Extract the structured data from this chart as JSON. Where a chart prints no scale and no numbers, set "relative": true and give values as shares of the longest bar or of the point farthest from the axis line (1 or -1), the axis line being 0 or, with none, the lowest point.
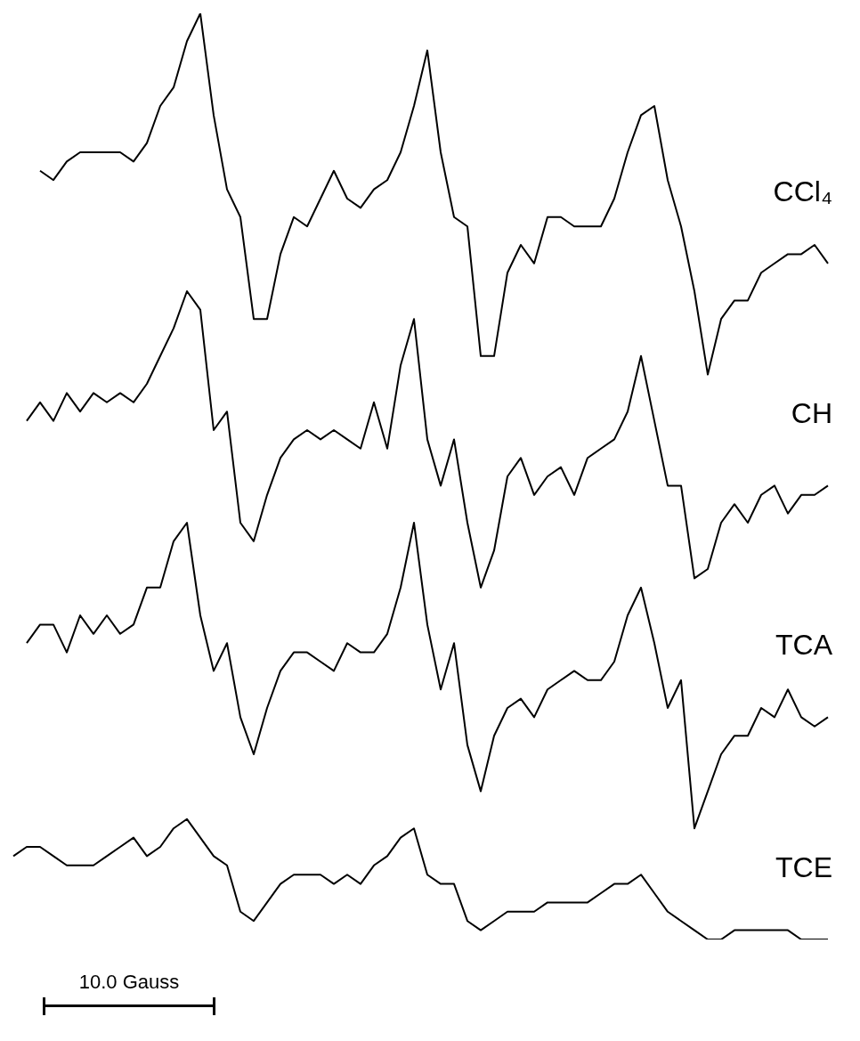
{
  "chart_data": {
    "type": "line",
    "relative": true,
    "marker": "none",
    "line_style": "solid",
    "categories": [
      null,
      null,
      null,
      null,
      null,
      null,
      null,
      null,
      null,
      null,
      null,
      null,
      null,
      null,
      null,
      null,
      null,
      null,
      null,
      null,
      null,
      null,
      null,
      null,
      null,
      null,
      null,
      null,
      null,
      null,
      null,
      null,
      null,
      null,
      null,
      null,
      null,
      null,
      null,
      null,
      null,
      null,
      null,
      null,
      null,
      null,
      null,
      null,
      null,
      null,
      null,
      null,
      null,
      null,
      null,
      null,
      null,
      null,
      null,
      null,
      null,
      null
    ],
    "series": [
      {
        "name": "CCl₄",
        "color": "#000000",
        "values": [
          null,
          null,
          0.83,
          0.82,
          0.84,
          0.85,
          0.85,
          0.85,
          0.85,
          0.84,
          0.86,
          0.9,
          0.92,
          0.97,
          1.0,
          0.89,
          0.81,
          0.78,
          0.67,
          0.67,
          0.74,
          0.78,
          0.77,
          0.8,
          0.83,
          0.8,
          0.79,
          0.81,
          0.82,
          0.85,
          0.9,
          0.96,
          0.85,
          0.78,
          0.77,
          0.63,
          0.63,
          0.72,
          0.75,
          0.73,
          0.78,
          0.78,
          0.77,
          0.77,
          0.77,
          0.8,
          0.85,
          0.89,
          0.9,
          0.82,
          0.77,
          0.7,
          0.61,
          0.67,
          0.69,
          0.69,
          0.72,
          0.73,
          0.74,
          0.74,
          0.75,
          0.73
        ]
      },
      {
        "name": "CH",
        "color": "#000000",
        "values": [
          null,
          0.56,
          0.58,
          0.56,
          0.59,
          0.57,
          0.59,
          0.58,
          0.59,
          0.58,
          0.6,
          0.63,
          0.66,
          0.7,
          0.68,
          0.55,
          0.57,
          0.45,
          0.43,
          0.48,
          0.52,
          0.54,
          0.55,
          0.54,
          0.55,
          0.54,
          0.53,
          0.58,
          0.53,
          0.62,
          0.67,
          0.54,
          0.49,
          0.54,
          0.45,
          0.38,
          0.42,
          0.5,
          0.52,
          0.48,
          0.5,
          0.51,
          0.48,
          0.52,
          0.53,
          0.54,
          0.57,
          0.63,
          0.56,
          0.49,
          0.49,
          0.39,
          0.4,
          0.45,
          0.47,
          0.45,
          0.48,
          0.49,
          0.46,
          0.48,
          0.48,
          0.49
        ]
      },
      {
        "name": "TCA",
        "color": "#000000",
        "values": [
          null,
          0.32,
          0.34,
          0.34,
          0.31,
          0.35,
          0.33,
          0.35,
          0.33,
          0.34,
          0.38,
          0.38,
          0.43,
          0.45,
          0.35,
          0.29,
          0.32,
          0.24,
          0.2,
          0.25,
          0.29,
          0.31,
          0.31,
          0.3,
          0.29,
          0.32,
          0.31,
          0.31,
          0.33,
          0.38,
          0.45,
          0.34,
          0.27,
          0.32,
          0.21,
          0.16,
          0.22,
          0.25,
          0.26,
          0.24,
          0.27,
          0.28,
          0.29,
          0.28,
          0.28,
          0.3,
          0.35,
          0.38,
          0.32,
          0.25,
          0.28,
          0.12,
          0.16,
          0.2,
          0.22,
          0.22,
          0.25,
          0.24,
          0.27,
          0.24,
          0.23,
          0.24
        ]
      },
      {
        "name": "TCE",
        "color": "#000000",
        "values": [
          0.09,
          0.1,
          0.1,
          0.09,
          0.08,
          0.08,
          0.08,
          0.09,
          0.1,
          0.11,
          0.09,
          0.1,
          0.12,
          0.13,
          0.11,
          0.09,
          0.08,
          0.03,
          0.02,
          0.04,
          0.06,
          0.07,
          0.07,
          0.07,
          0.06,
          0.07,
          0.06,
          0.08,
          0.09,
          0.11,
          0.12,
          0.07,
          0.06,
          0.06,
          0.02,
          0.01,
          0.02,
          0.03,
          0.03,
          0.03,
          0.04,
          0.04,
          0.04,
          0.04,
          0.05,
          0.06,
          0.06,
          0.07,
          0.05,
          0.03,
          0.02,
          0.01,
          0,
          0,
          0.01,
          0.01,
          0.01,
          0.01,
          0.01,
          0,
          0,
          0
        ]
      }
    ],
    "annotations": [
      "10.0 Gauss"
    ]
  }
}
